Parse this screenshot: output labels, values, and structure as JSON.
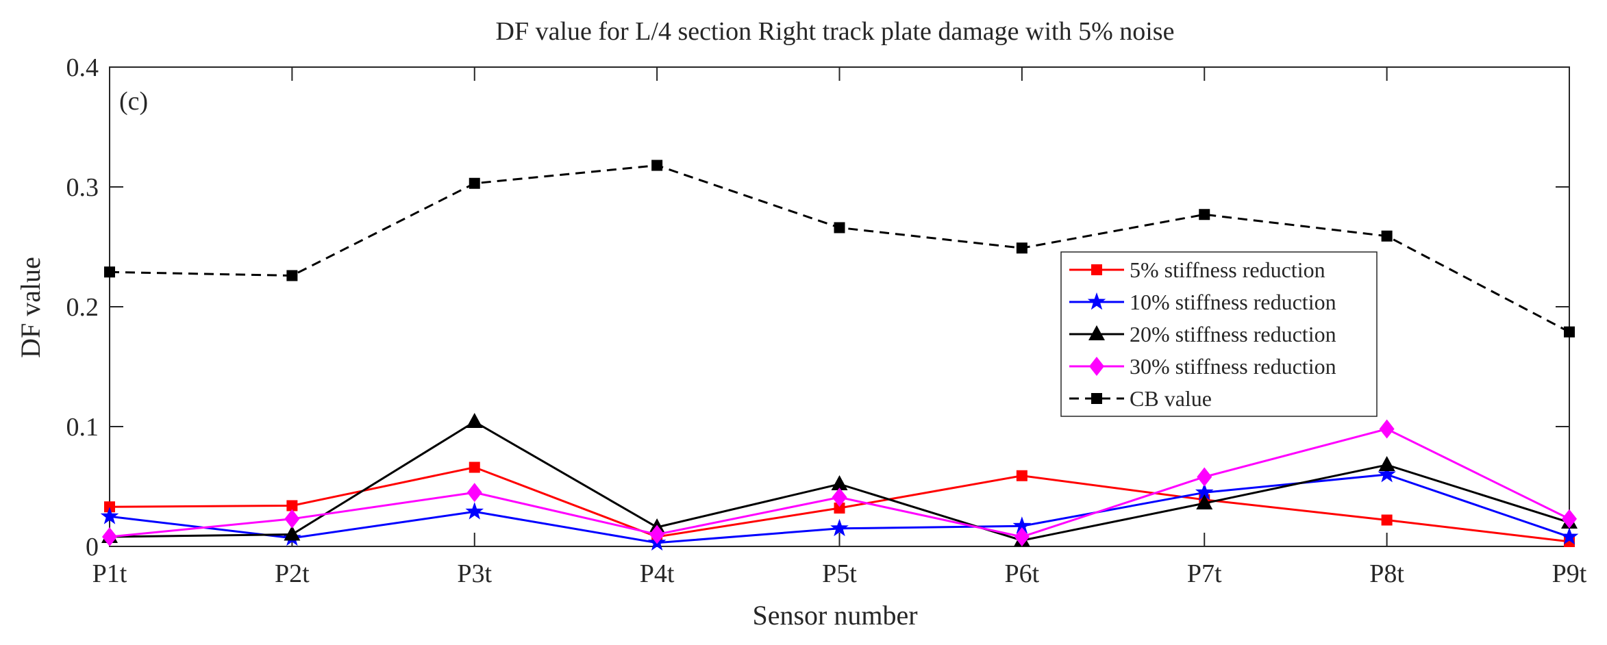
{
  "chart_data": {
    "type": "line",
    "title": "DF value  for L/4 section Right track plate damage with 5% noise",
    "xlabel": "Sensor number",
    "ylabel": "DF value",
    "panel_label": "(c)",
    "categories": [
      "P1t",
      "P2t",
      "P3t",
      "P4t",
      "P5t",
      "P6t",
      "P7t",
      "P8t",
      "P9t"
    ],
    "ylim": [
      0,
      0.4
    ],
    "yticks": [
      "0",
      "0.1",
      "0.2",
      "0.3",
      "0.4"
    ],
    "legend_position": "center-right",
    "grid": false,
    "series": [
      {
        "name": "5% stiffness reduction",
        "color": "#ff0000",
        "marker": "square",
        "dash": "solid",
        "values": [
          0.033,
          0.034,
          0.066,
          0.008,
          0.032,
          0.059,
          0.039,
          0.022,
          0.004
        ]
      },
      {
        "name": "10% stiffness reduction",
        "color": "#0000ff",
        "marker": "star",
        "dash": "solid",
        "values": [
          0.025,
          0.007,
          0.029,
          0.003,
          0.015,
          0.017,
          0.045,
          0.06,
          0.008
        ]
      },
      {
        "name": "20% stiffness reduction",
        "color": "#000000",
        "marker": "triangle",
        "dash": "solid",
        "values": [
          0.008,
          0.01,
          0.104,
          0.016,
          0.052,
          0.005,
          0.036,
          0.068,
          0.02
        ]
      },
      {
        "name": "30% stiffness reduction",
        "color": "#ff00ff",
        "marker": "diamond",
        "dash": "solid",
        "values": [
          0.008,
          0.023,
          0.045,
          0.01,
          0.041,
          0.008,
          0.058,
          0.098,
          0.023
        ]
      },
      {
        "name": "CB value",
        "color": "#000000",
        "marker": "square",
        "dash": "dashed",
        "values": [
          0.229,
          0.226,
          0.303,
          0.318,
          0.266,
          0.249,
          0.277,
          0.259,
          0.179
        ]
      }
    ]
  }
}
